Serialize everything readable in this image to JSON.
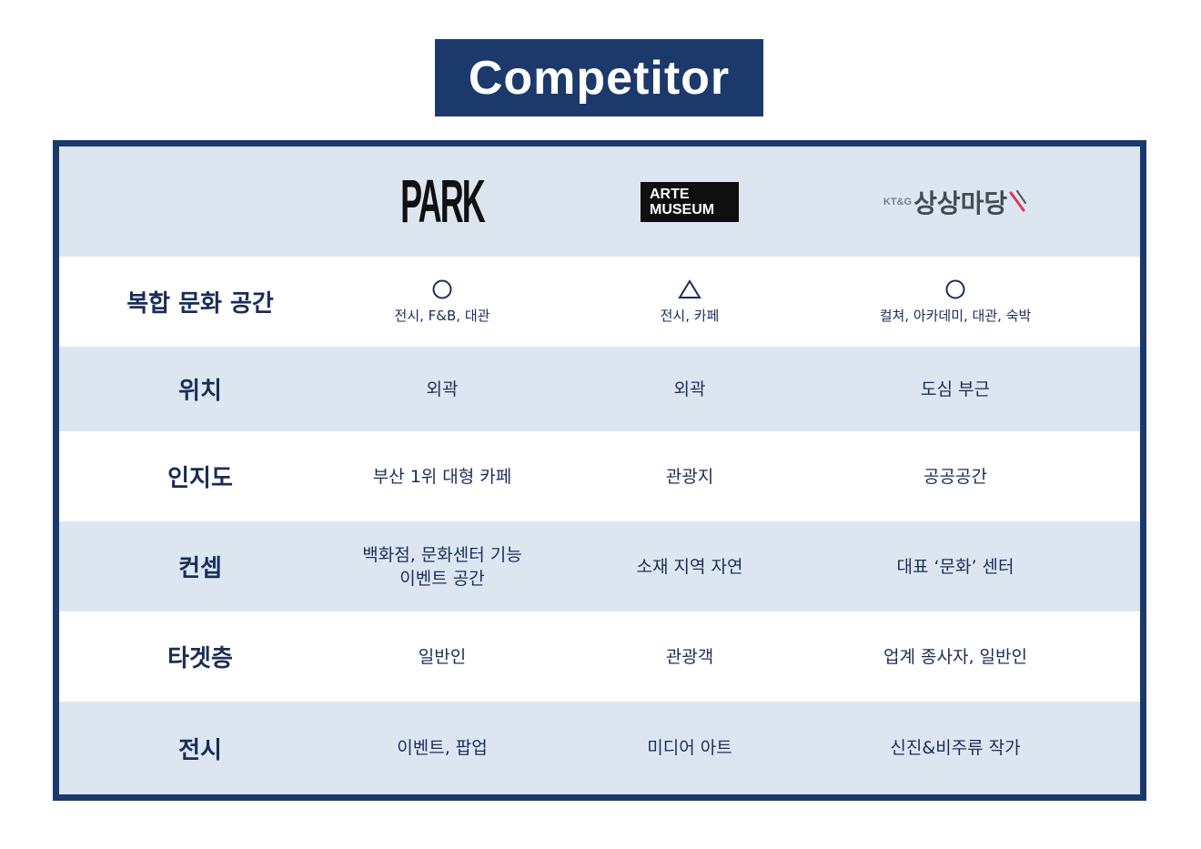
{
  "title": "Competitor",
  "logos": {
    "park": "PARK",
    "arte_line1": "ARTE",
    "arte_line2": "MUSEUM",
    "ktg_small": "KT&G",
    "ktg_main": "상상마당"
  },
  "rows": [
    {
      "label": "복합 문화 공간",
      "cells": [
        {
          "symbol": "○",
          "text": "전시, F&B, 대관"
        },
        {
          "symbol": "△",
          "text": "전시, 카페"
        },
        {
          "symbol": "○",
          "text": "컬쳐, 아카데미, 대관, 숙박"
        }
      ]
    },
    {
      "label": "위치",
      "cells": [
        "외곽",
        "외곽",
        "도심 부근"
      ]
    },
    {
      "label": "인지도",
      "cells": [
        "부산 1위 대형 카페",
        "관광지",
        "공공공간"
      ]
    },
    {
      "label": "컨셉",
      "cells": [
        {
          "line1": "백화점, 문화센터 기능",
          "line2": "이벤트 공간"
        },
        "소재 지역 자연",
        "대표 ‘문화’ 센터"
      ]
    },
    {
      "label": "타겟층",
      "cells": [
        "일반인",
        "관광객",
        "업계 종사자, 일반인"
      ]
    },
    {
      "label": "전시",
      "cells": [
        "이벤트, 팝업",
        "미디어 아트",
        "신진&비주류 작가"
      ]
    }
  ],
  "colors": {
    "navy": "#1b3a6b",
    "row_shade": "#dce6f1",
    "text": "#1b2d57"
  }
}
